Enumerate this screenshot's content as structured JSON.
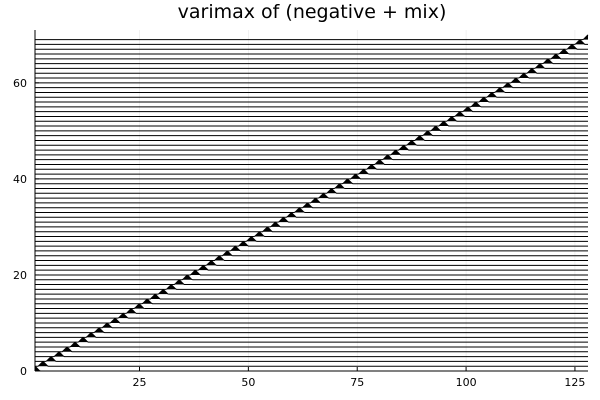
{
  "chart_data": {
    "type": "line",
    "title": "varimax of (negative + mix)",
    "xlabel": "",
    "ylabel": "",
    "xlim": [
      1,
      128
    ],
    "ylim": [
      0,
      71
    ],
    "xticks": [
      25,
      50,
      75,
      100,
      125
    ],
    "yticks": [
      0,
      20,
      40,
      60
    ],
    "grid": true,
    "legend": "none",
    "series_count": 70,
    "series_style": "stacked traces, each offset by 1 on the y axis; trace k rises to a peak of about 1 above its baseline k-1 near x = 1 + 1.84*(k-1)",
    "line_color": "#000000",
    "peak_fill_color": "#000000"
  }
}
